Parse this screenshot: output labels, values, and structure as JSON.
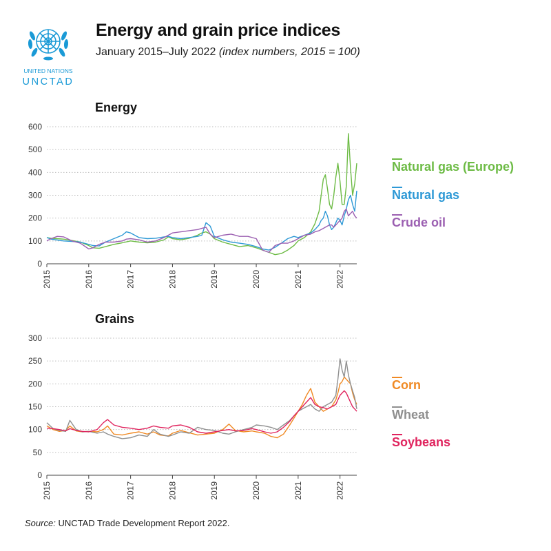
{
  "header": {
    "title": "Energy and grain price indices",
    "subtitle": "January 2015–July 2022",
    "subtitle_note": "(index numbers, 2015 = 100)"
  },
  "logo": {
    "line1": "UNITED NATIONS",
    "line2": "UNCTAD",
    "color": "#1a9ad6"
  },
  "source": {
    "label": "Source:",
    "text": "UNCTAD Trade Development Report 2022."
  },
  "chart_data": [
    {
      "type": "line",
      "title": "Energy",
      "xlabel": "",
      "ylabel": "",
      "xlim": [
        2015,
        2022.4
      ],
      "ylim": [
        0,
        600
      ],
      "x_ticks": [
        "2015",
        "2016",
        "2017",
        "2018",
        "2019",
        "2020",
        "2021",
        "2022"
      ],
      "y_ticks": [
        0,
        100,
        200,
        300,
        400,
        500,
        600
      ],
      "grid": "horizontal-dotted",
      "legend_position": "right",
      "series": [
        {
          "name": "Natural gas (Europe)",
          "color": "#6dbb45",
          "x": [
            2015,
            2015.1,
            2015.25,
            2015.4,
            2015.6,
            2015.8,
            2016,
            2016.1,
            2016.25,
            2016.4,
            2016.6,
            2016.8,
            2016.9,
            2017,
            2017.2,
            2017.4,
            2017.6,
            2017.8,
            2017.9,
            2018,
            2018.2,
            2018.4,
            2018.6,
            2018.7,
            2018.8,
            2018.9,
            2019,
            2019.2,
            2019.4,
            2019.6,
            2019.8,
            2020,
            2020.15,
            2020.3,
            2020.45,
            2020.6,
            2020.75,
            2020.9,
            2021,
            2021.15,
            2021.3,
            2021.4,
            2021.5,
            2021.55,
            2021.6,
            2021.65,
            2021.7,
            2021.75,
            2021.8,
            2021.85,
            2021.9,
            2021.95,
            2022,
            2022.05,
            2022.1,
            2022.15,
            2022.2,
            2022.25,
            2022.3,
            2022.35,
            2022.4
          ],
          "y": [
            115,
            112,
            110,
            108,
            102,
            95,
            80,
            70,
            68,
            75,
            85,
            92,
            96,
            100,
            95,
            92,
            95,
            105,
            118,
            110,
            105,
            112,
            125,
            135,
            140,
            130,
            110,
            95,
            85,
            75,
            80,
            70,
            60,
            50,
            40,
            45,
            60,
            80,
            100,
            115,
            140,
            175,
            230,
            300,
            370,
            390,
            330,
            260,
            240,
            300,
            380,
            440,
            360,
            260,
            260,
            340,
            570,
            420,
            300,
            350,
            440
          ]
        },
        {
          "name": "Natural gas",
          "color": "#2e99d6",
          "x": [
            2015,
            2015.1,
            2015.25,
            2015.4,
            2015.6,
            2015.8,
            2016,
            2016.1,
            2016.25,
            2016.4,
            2016.6,
            2016.8,
            2016.9,
            2017,
            2017.2,
            2017.4,
            2017.6,
            2017.8,
            2017.9,
            2018,
            2018.2,
            2018.4,
            2018.6,
            2018.7,
            2018.8,
            2018.9,
            2019,
            2019.2,
            2019.4,
            2019.6,
            2019.8,
            2020,
            2020.15,
            2020.3,
            2020.45,
            2020.6,
            2020.75,
            2020.9,
            2021,
            2021.15,
            2021.3,
            2021.4,
            2021.5,
            2021.55,
            2021.6,
            2021.65,
            2021.7,
            2021.75,
            2021.8,
            2021.85,
            2021.9,
            2021.95,
            2022,
            2022.05,
            2022.1,
            2022.15,
            2022.2,
            2022.25,
            2022.3,
            2022.35,
            2022.4
          ],
          "y": [
            115,
            108,
            104,
            100,
            98,
            95,
            85,
            80,
            78,
            95,
            110,
            125,
            140,
            135,
            115,
            110,
            112,
            118,
            120,
            115,
            110,
            115,
            120,
            125,
            180,
            165,
            120,
            105,
            95,
            90,
            85,
            75,
            65,
            60,
            72,
            90,
            110,
            120,
            115,
            125,
            135,
            150,
            170,
            190,
            200,
            230,
            210,
            170,
            150,
            160,
            180,
            200,
            190,
            170,
            210,
            240,
            280,
            300,
            260,
            230,
            320
          ]
        },
        {
          "name": "Crude oil",
          "color": "#9b5fb1",
          "x": [
            2015,
            2015.1,
            2015.25,
            2015.4,
            2015.6,
            2015.8,
            2016,
            2016.1,
            2016.25,
            2016.4,
            2016.6,
            2016.8,
            2016.9,
            2017,
            2017.2,
            2017.4,
            2017.6,
            2017.8,
            2017.9,
            2018,
            2018.2,
            2018.4,
            2018.6,
            2018.7,
            2018.8,
            2018.9,
            2019,
            2019.2,
            2019.4,
            2019.6,
            2019.8,
            2020,
            2020.15,
            2020.3,
            2020.45,
            2020.6,
            2020.75,
            2020.9,
            2021,
            2021.15,
            2021.3,
            2021.4,
            2021.5,
            2021.55,
            2021.6,
            2021.65,
            2021.7,
            2021.75,
            2021.8,
            2021.85,
            2021.9,
            2021.95,
            2022,
            2022.05,
            2022.1,
            2022.15,
            2022.2,
            2022.25,
            2022.3,
            2022.35,
            2022.4
          ],
          "y": [
            100,
            110,
            120,
            118,
            100,
            90,
            65,
            70,
            85,
            95,
            95,
            100,
            108,
            110,
            105,
            95,
            100,
            115,
            125,
            135,
            140,
            145,
            150,
            155,
            160,
            130,
            115,
            125,
            130,
            120,
            120,
            110,
            60,
            50,
            80,
            90,
            90,
            100,
            110,
            125,
            130,
            140,
            145,
            150,
            155,
            160,
            165,
            170,
            170,
            160,
            170,
            180,
            190,
            200,
            230,
            240,
            210,
            220,
            230,
            210,
            200
          ]
        }
      ]
    },
    {
      "type": "line",
      "title": "Grains",
      "xlabel": "",
      "ylabel": "",
      "xlim": [
        2015,
        2022.4
      ],
      "ylim": [
        0,
        300
      ],
      "x_ticks": [
        "2015",
        "2016",
        "2017",
        "2018",
        "2019",
        "2020",
        "2021",
        "2022"
      ],
      "y_ticks": [
        0,
        50,
        100,
        150,
        200,
        250,
        300
      ],
      "grid": "horizontal-dotted",
      "legend_position": "right",
      "series": [
        {
          "name": "Corn",
          "color": "#f08a24",
          "x": [
            2015,
            2015.15,
            2015.3,
            2015.45,
            2015.55,
            2015.7,
            2015.85,
            2016,
            2016.2,
            2016.35,
            2016.45,
            2016.6,
            2016.8,
            2017,
            2017.2,
            2017.4,
            2017.55,
            2017.7,
            2017.9,
            2018,
            2018.2,
            2018.4,
            2018.6,
            2018.8,
            2019,
            2019.2,
            2019.35,
            2019.5,
            2019.7,
            2019.9,
            2020,
            2020.2,
            2020.35,
            2020.5,
            2020.65,
            2020.8,
            2020.9,
            2021,
            2021.1,
            2021.2,
            2021.3,
            2021.4,
            2021.5,
            2021.6,
            2021.7,
            2021.8,
            2021.9,
            2021.95,
            2022,
            2022.05,
            2022.1,
            2022.15,
            2022.2,
            2022.25,
            2022.3,
            2022.35,
            2022.4
          ],
          "y": [
            108,
            100,
            96,
            98,
            108,
            97,
            95,
            96,
            95,
            100,
            108,
            90,
            88,
            92,
            95,
            90,
            95,
            88,
            86,
            92,
            98,
            93,
            88,
            90,
            92,
            100,
            112,
            98,
            95,
            97,
            95,
            92,
            85,
            82,
            90,
            110,
            125,
            140,
            155,
            175,
            190,
            160,
            150,
            140,
            145,
            150,
            165,
            180,
            200,
            205,
            215,
            210,
            205,
            200,
            180,
            165,
            155
          ]
        },
        {
          "name": "Wheat",
          "color": "#8f8f8f",
          "x": [
            2015,
            2015.15,
            2015.3,
            2015.45,
            2015.55,
            2015.7,
            2015.85,
            2016,
            2016.2,
            2016.35,
            2016.45,
            2016.6,
            2016.8,
            2017,
            2017.2,
            2017.4,
            2017.55,
            2017.7,
            2017.9,
            2018,
            2018.2,
            2018.4,
            2018.6,
            2018.8,
            2019,
            2019.2,
            2019.35,
            2019.5,
            2019.7,
            2019.9,
            2020,
            2020.2,
            2020.35,
            2020.5,
            2020.65,
            2020.8,
            2020.9,
            2021,
            2021.1,
            2021.2,
            2021.3,
            2021.4,
            2021.5,
            2021.6,
            2021.7,
            2021.8,
            2021.9,
            2021.95,
            2022,
            2022.05,
            2022.1,
            2022.15,
            2022.2,
            2022.25,
            2022.3,
            2022.35,
            2022.4
          ],
          "y": [
            115,
            102,
            98,
            96,
            120,
            100,
            95,
            96,
            92,
            95,
            90,
            85,
            80,
            82,
            88,
            85,
            100,
            90,
            85,
            88,
            95,
            92,
            105,
            100,
            98,
            92,
            90,
            95,
            100,
            105,
            110,
            108,
            105,
            100,
            110,
            120,
            130,
            140,
            145,
            150,
            155,
            145,
            140,
            150,
            155,
            160,
            175,
            210,
            255,
            230,
            215,
            250,
            220,
            200,
            185,
            170,
            145
          ]
        },
        {
          "name": "Soybeans",
          "color": "#e0245e",
          "x": [
            2015,
            2015.15,
            2015.3,
            2015.45,
            2015.55,
            2015.7,
            2015.85,
            2016,
            2016.2,
            2016.35,
            2016.45,
            2016.6,
            2016.8,
            2017,
            2017.2,
            2017.4,
            2017.55,
            2017.7,
            2017.9,
            2018,
            2018.2,
            2018.4,
            2018.6,
            2018.8,
            2019,
            2019.2,
            2019.35,
            2019.5,
            2019.7,
            2019.9,
            2020,
            2020.2,
            2020.35,
            2020.5,
            2020.65,
            2020.8,
            2020.9,
            2021,
            2021.1,
            2021.2,
            2021.3,
            2021.4,
            2021.5,
            2021.6,
            2021.7,
            2021.8,
            2021.9,
            2021.95,
            2022,
            2022.05,
            2022.1,
            2022.15,
            2022.2,
            2022.25,
            2022.3,
            2022.35,
            2022.4
          ],
          "y": [
            103,
            102,
            100,
            97,
            102,
            98,
            96,
            95,
            100,
            115,
            122,
            110,
            105,
            103,
            100,
            103,
            108,
            105,
            103,
            108,
            110,
            105,
            95,
            92,
            95,
            98,
            100,
            97,
            98,
            102,
            100,
            95,
            92,
            95,
            105,
            118,
            130,
            140,
            150,
            160,
            170,
            155,
            150,
            148,
            145,
            150,
            155,
            165,
            175,
            180,
            185,
            180,
            170,
            160,
            150,
            145,
            140
          ]
        }
      ]
    }
  ]
}
